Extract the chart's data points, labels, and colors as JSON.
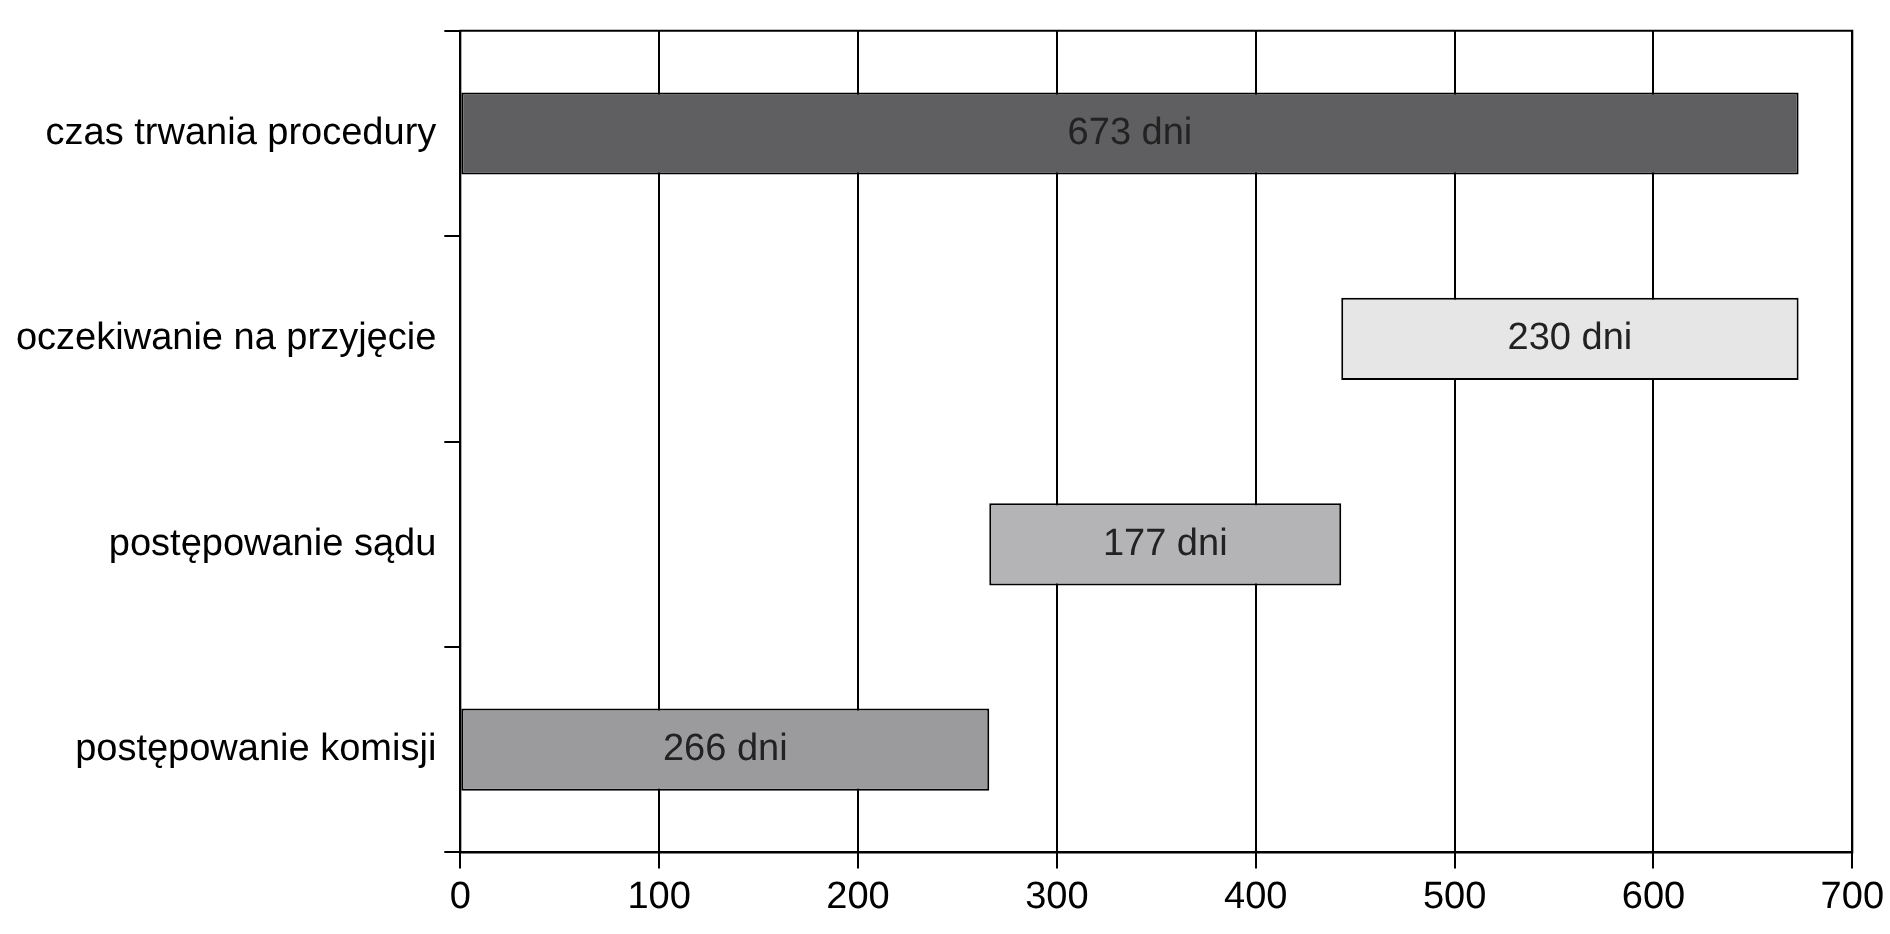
{
  "chart_data": {
    "type": "bar",
    "orientation": "horizontal",
    "categories": [
      "czas trwania procedury",
      "oczekiwanie na przyjęcie",
      "postępowanie sądu",
      "postępowanie komisji"
    ],
    "values": [
      673,
      230,
      177,
      266
    ],
    "base": [
      0,
      443,
      266,
      0
    ],
    "colors": [
      "#5f5f61",
      "#e6e6e6",
      "#b4b4b6",
      "#9b9b9d"
    ],
    "value_labels": [
      "673 dni",
      "230 dni",
      "177 dni",
      "266 dni"
    ],
    "xlim": [
      0,
      700
    ],
    "xticks": [
      0,
      100,
      200,
      300,
      400,
      500,
      600,
      700
    ],
    "grid": "x",
    "legend": false
  }
}
